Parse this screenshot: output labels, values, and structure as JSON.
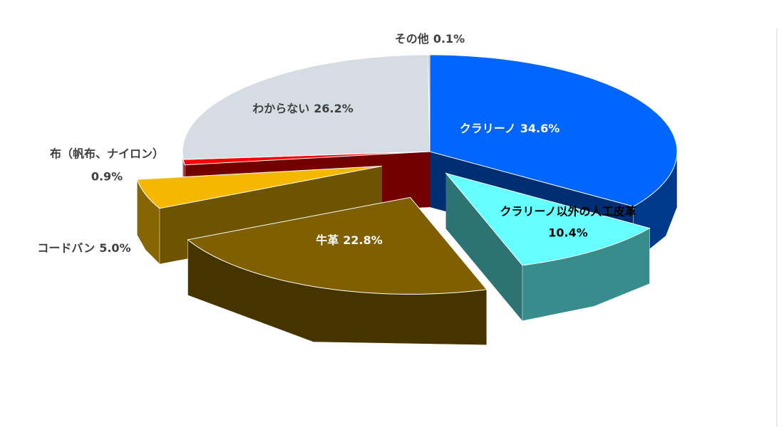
{
  "chart_data": {
    "type": "pie3d",
    "categories": [
      "クラリーノ",
      "クラリーノ以外の人工皮革",
      "牛革",
      "コードバン",
      "布（帆布、ナイロン）",
      "わからない",
      "その他"
    ],
    "values": [
      34.6,
      10.4,
      22.8,
      5.0,
      0.9,
      26.2,
      0.1
    ],
    "value_labels": [
      "34.6%",
      "10.4%",
      "22.8%",
      "5.0%",
      "0.9%",
      "26.2%",
      "0.1%"
    ],
    "colors": [
      "#0066ff",
      "#66ffff",
      "#7f5f00",
      "#f5b800",
      "#ff0000",
      "#d6dce4",
      "#a0a0a0"
    ]
  }
}
